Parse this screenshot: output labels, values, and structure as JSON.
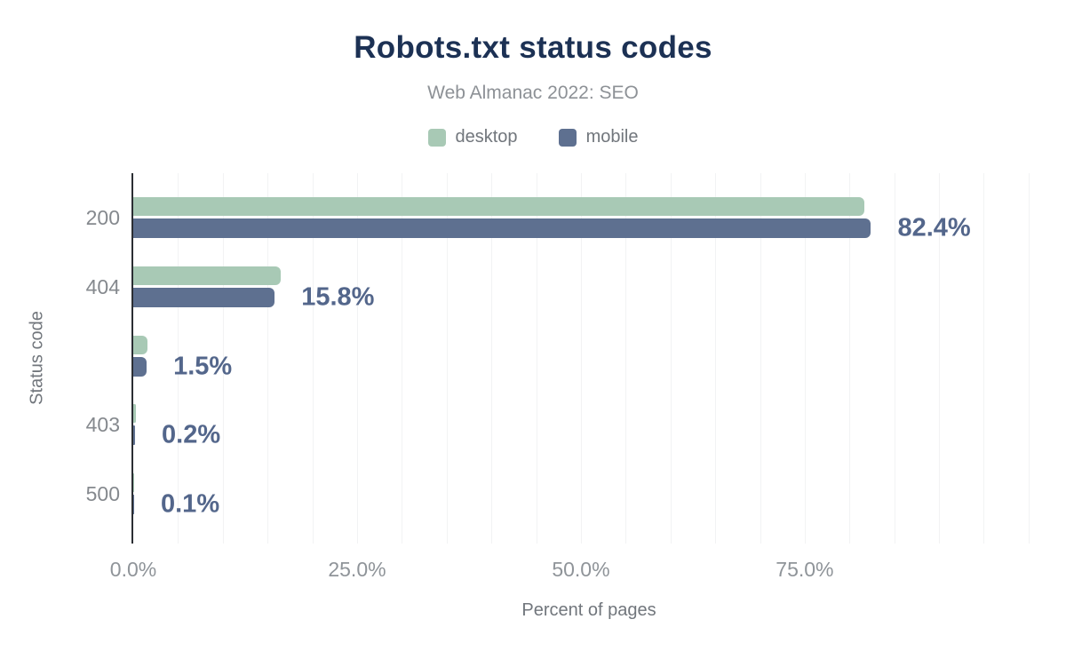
{
  "chart_data": {
    "type": "bar",
    "orientation": "horizontal",
    "title": "Robots.txt status codes",
    "subtitle": "Web Almanac 2022: SEO",
    "categories": [
      "200",
      "404",
      "",
      "403",
      "500"
    ],
    "series": [
      {
        "name": "desktop",
        "color": "#a8c9b5",
        "values": [
          81.7,
          16.5,
          1.6,
          0.3,
          0.1
        ]
      },
      {
        "name": "mobile",
        "color": "#5e7090",
        "values": [
          82.4,
          15.8,
          1.5,
          0.2,
          0.1
        ]
      }
    ],
    "value_labels": [
      "82.4%",
      "15.8%",
      "1.5%",
      "0.2%",
      "0.1%"
    ],
    "value_labels_series": "mobile",
    "xlabel": "Percent of pages",
    "ylabel": "Status code",
    "xlim": [
      0,
      101.8
    ],
    "x_ticks": [
      0,
      25,
      50,
      75
    ],
    "x_tick_labels": [
      "0.0%",
      "25.0%",
      "50.0%",
      "75.0%"
    ],
    "grid": {
      "axis": "x",
      "step": 5,
      "max": 100,
      "on": true
    },
    "legend_position": "top",
    "colors": {
      "title": "#1c3154",
      "subtitle": "#8d9196",
      "axis_line": "#2b2e33",
      "tick_label": "#8f9499",
      "category_label": "#85898e",
      "value_label": "#53668b",
      "gridline": "#f2f3f4",
      "legend_text": "#71767c",
      "desktop": "#a8c9b5",
      "mobile": "#5e7090"
    }
  }
}
